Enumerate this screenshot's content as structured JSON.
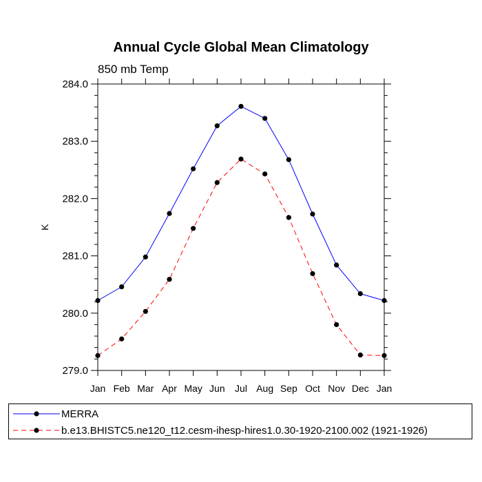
{
  "chart_data": {
    "type": "line",
    "title": "Annual Cycle Global Mean Climatology",
    "subtitle": "850 mb Temp",
    "xlabel": "",
    "ylabel": "K",
    "categories": [
      "Jan",
      "Feb",
      "Mar",
      "Apr",
      "May",
      "Jun",
      "Jul",
      "Aug",
      "Sep",
      "Oct",
      "Nov",
      "Dec",
      "Jan"
    ],
    "ylim": [
      279.0,
      284.0
    ],
    "yticks": [
      "279.0",
      "280.0",
      "281.0",
      "282.0",
      "283.0",
      "284.0"
    ],
    "yminor_step": 0.2,
    "grid": false,
    "legend_position": "bottom",
    "series": [
      {
        "name": "MERRA",
        "color": "#0000ff",
        "dash": "solid",
        "marker": "circle",
        "values": [
          280.22,
          280.46,
          280.98,
          281.74,
          282.52,
          283.27,
          283.61,
          283.4,
          282.68,
          281.73,
          280.84,
          280.34,
          280.22
        ]
      },
      {
        "name": "b.e13.BHISTC5.ne120_t12.cesm-ihesp-hires1.0.30-1920-2100.002 (1921-1926)",
        "color": "#ff0000",
        "dash": "dashed",
        "marker": "circle",
        "values": [
          279.26,
          279.55,
          280.03,
          280.59,
          281.48,
          282.28,
          282.69,
          282.43,
          281.67,
          280.69,
          279.8,
          279.27,
          279.26
        ]
      }
    ]
  }
}
